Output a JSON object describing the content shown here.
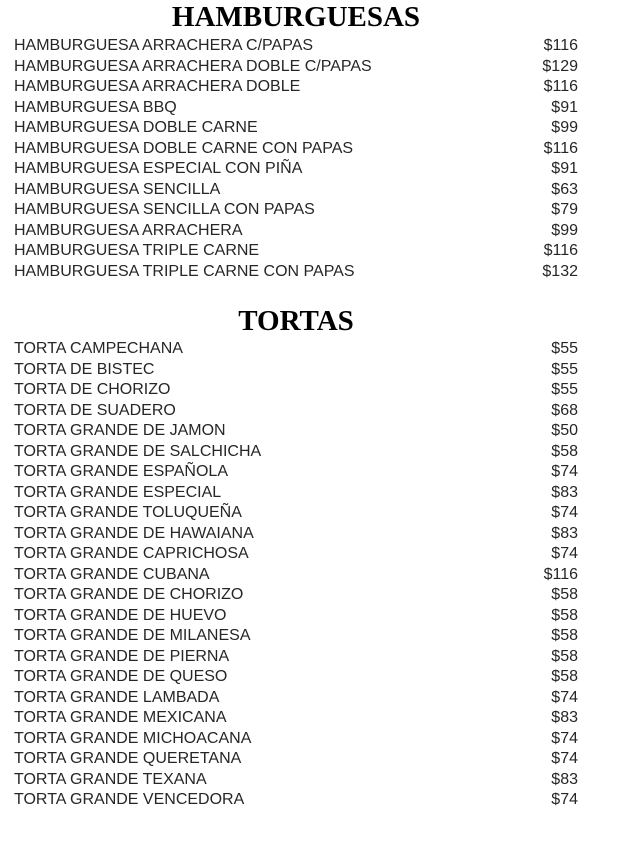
{
  "menu": {
    "sections": [
      {
        "title": "HAMBURGUESAS",
        "items": [
          {
            "name": "HAMBURGUESA ARRACHERA C/PAPAS",
            "price": "$116"
          },
          {
            "name": "HAMBURGUESA ARRACHERA DOBLE C/PAPAS",
            "price": "$129"
          },
          {
            "name": "HAMBURGUESA ARRACHERA DOBLE",
            "price": "$116"
          },
          {
            "name": "HAMBURGUESA BBQ",
            "price": "$91"
          },
          {
            "name": "HAMBURGUESA DOBLE CARNE",
            "price": "$99"
          },
          {
            "name": "HAMBURGUESA DOBLE CARNE CON PAPAS",
            "price": "$116"
          },
          {
            "name": "HAMBURGUESA ESPECIAL CON PIÑA",
            "price": "$91"
          },
          {
            "name": "HAMBURGUESA SENCILLA",
            "price": "$63"
          },
          {
            "name": "HAMBURGUESA SENCILLA CON PAPAS",
            "price": "$79"
          },
          {
            "name": "HAMBURGUESA ARRACHERA",
            "price": "$99"
          },
          {
            "name": "HAMBURGUESA TRIPLE CARNE",
            "price": "$116"
          },
          {
            "name": "HAMBURGUESA TRIPLE CARNE CON PAPAS",
            "price": "$132"
          }
        ]
      },
      {
        "title": "TORTAS",
        "items": [
          {
            "name": "TORTA CAMPECHANA",
            "price": "$55"
          },
          {
            "name": "TORTA DE BISTEC",
            "price": "$55"
          },
          {
            "name": "TORTA DE CHORIZO",
            "price": "$55"
          },
          {
            "name": "TORTA DE SUADERO",
            "price": "$68"
          },
          {
            "name": "TORTA GRANDE DE JAMON",
            "price": "$50"
          },
          {
            "name": "TORTA GRANDE DE SALCHICHA",
            "price": "$58"
          },
          {
            "name": "TORTA GRANDE ESPAÑOLA",
            "price": "$74"
          },
          {
            "name": "TORTA GRANDE ESPECIAL",
            "price": "$83"
          },
          {
            "name": "TORTA GRANDE TOLUQUEÑA",
            "price": "$74"
          },
          {
            "name": "TORTA GRANDE DE HAWAIANA",
            "price": "$83"
          },
          {
            "name": "TORTA GRANDE CAPRICHOSA",
            "price": "$74"
          },
          {
            "name": "TORTA GRANDE CUBANA",
            "price": "$116"
          },
          {
            "name": "TORTA GRANDE DE CHORIZO",
            "price": "$58"
          },
          {
            "name": "TORTA GRANDE DE HUEVO",
            "price": "$58"
          },
          {
            "name": "TORTA GRANDE DE MILANESA",
            "price": "$58"
          },
          {
            "name": "TORTA GRANDE DE PIERNA",
            "price": "$58"
          },
          {
            "name": "TORTA GRANDE DE QUESO",
            "price": "$58"
          },
          {
            "name": "TORTA GRANDE LAMBADA",
            "price": "$74"
          },
          {
            "name": "TORTA GRANDE MEXICANA",
            "price": "$83"
          },
          {
            "name": "TORTA GRANDE MICHOACANA",
            "price": "$74"
          },
          {
            "name": "TORTA GRANDE QUERETANA",
            "price": "$74"
          },
          {
            "name": "TORTA GRANDE TEXANA",
            "price": "$83"
          },
          {
            "name": "TORTA GRANDE VENCEDORA",
            "price": "$74"
          }
        ]
      }
    ]
  },
  "colors": {
    "background": "#ffffff",
    "title_text": "#000000",
    "item_text": "#262626"
  }
}
